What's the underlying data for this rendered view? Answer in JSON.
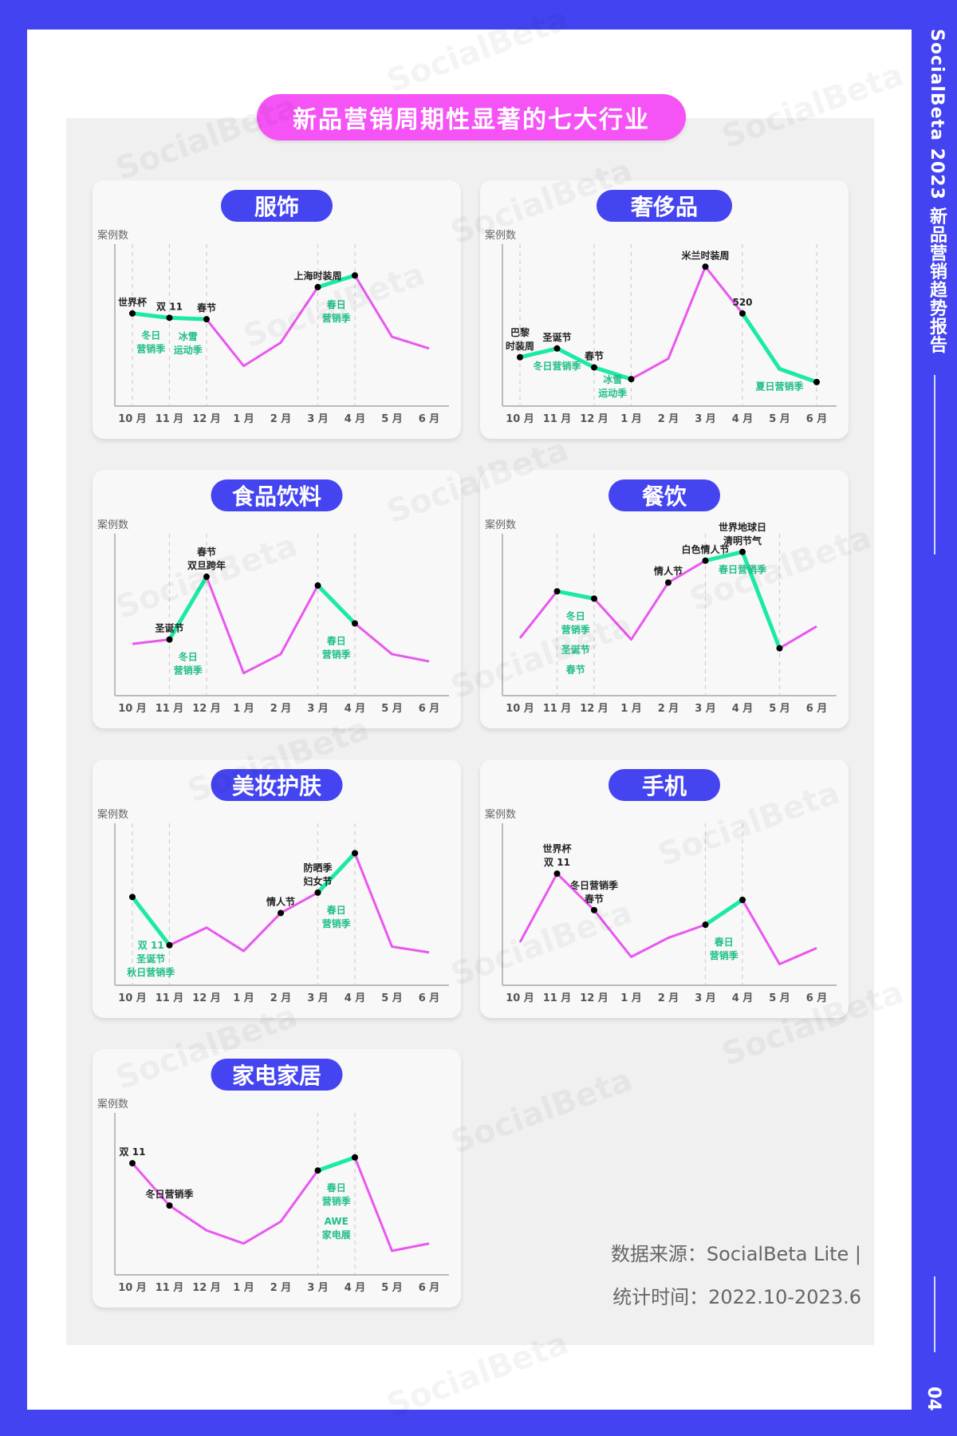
{
  "side": {
    "title": "SocialBeta 2023 新品营销趋势报告",
    "page_number": "04"
  },
  "header": {
    "title": "新品营销周期性显著的七大行业"
  },
  "footer": {
    "source": "数据来源：SocialBeta Lite |",
    "period": "统计时间：2022.10-2023.6"
  },
  "watermark": "SocialBeta",
  "colors": {
    "frame": "#4343f2",
    "title_pill": "#f553f5",
    "card_pill": "#4444f0",
    "line": "#e957f0",
    "highlight": "#1de9a6",
    "annotation_green": "#1fbf85",
    "panel": "#f0f0f0"
  },
  "chart_data": [
    {
      "type": "line",
      "title": "服饰",
      "ylabel": "案例数",
      "xlabel": "",
      "categories": [
        "10 月",
        "11 月",
        "12 月",
        "1 月",
        "2 月",
        "3 月",
        "4 月",
        "5 月",
        "6 月"
      ],
      "values": [
        58,
        55,
        54,
        22,
        38,
        76,
        84,
        42,
        34
      ],
      "highlight_segments": [
        [
          0,
          2
        ],
        [
          5,
          6
        ]
      ],
      "marked_points": [
        0,
        1,
        2,
        5,
        6
      ],
      "dashed_guides": [
        0,
        1,
        2,
        5,
        6
      ],
      "annotations": [
        {
          "text": "世界杯",
          "at": 0,
          "kind": "event"
        },
        {
          "text": "双 11",
          "at": 1,
          "kind": "event"
        },
        {
          "text": "春节",
          "at": 2,
          "kind": "event"
        },
        {
          "text": "上海时装周",
          "at": 5,
          "kind": "event"
        },
        {
          "text": "冬日\n营销季",
          "at": 0.5,
          "kind": "season"
        },
        {
          "text": "冰雪\n运动季",
          "at": 1.5,
          "kind": "season"
        },
        {
          "text": "春日\n营销季",
          "at": 5.5,
          "kind": "season"
        }
      ]
    },
    {
      "type": "line",
      "title": "奢侈品",
      "ylabel": "案例数",
      "xlabel": "",
      "categories": [
        "10 月",
        "11 月",
        "12 月",
        "1 月",
        "2 月",
        "3 月",
        "4 月",
        "5 月",
        "6 月"
      ],
      "values": [
        28,
        34,
        21,
        13,
        27,
        90,
        58,
        20,
        11
      ],
      "highlight_segments": [
        [
          0,
          3
        ],
        [
          6,
          8
        ]
      ],
      "marked_points": [
        0,
        1,
        2,
        3,
        5,
        6,
        8
      ],
      "dashed_guides": [
        0,
        2,
        3,
        6,
        8
      ],
      "annotations": [
        {
          "text": "巴黎\n时装周",
          "at": 0,
          "kind": "event"
        },
        {
          "text": "圣诞节",
          "at": 1,
          "kind": "event"
        },
        {
          "text": "春节",
          "at": 2,
          "kind": "event"
        },
        {
          "text": "米兰时装周",
          "at": 5,
          "kind": "event"
        },
        {
          "text": "520",
          "at": 6,
          "kind": "event"
        },
        {
          "text": "冬日营销季",
          "at": 1,
          "kind": "season"
        },
        {
          "text": "冰雪\n运动季",
          "at": 2.5,
          "kind": "season"
        },
        {
          "text": "夏日营销季",
          "at": 7,
          "kind": "season"
        }
      ]
    },
    {
      "type": "line",
      "title": "食品饮料",
      "ylabel": "案例数",
      "xlabel": "",
      "categories": [
        "10 月",
        "11 月",
        "12 月",
        "1 月",
        "2 月",
        "3 月",
        "4 月",
        "5 月",
        "6 月"
      ],
      "values": [
        30,
        33,
        76,
        10,
        23,
        70,
        44,
        23,
        18
      ],
      "highlight_segments": [
        [
          1,
          2
        ],
        [
          5,
          6
        ]
      ],
      "marked_points": [
        1,
        2,
        5,
        6
      ],
      "dashed_guides": [
        1,
        2,
        5,
        6
      ],
      "annotations": [
        {
          "text": "圣诞节",
          "at": 1,
          "kind": "event"
        },
        {
          "text": "春节\n双旦跨年",
          "at": 2,
          "kind": "event"
        },
        {
          "text": "冬日\n营销季",
          "at": 1.5,
          "kind": "season"
        },
        {
          "text": "春日\n营销季",
          "at": 5.5,
          "kind": "season"
        }
      ]
    },
    {
      "type": "line",
      "title": "餐饮",
      "ylabel": "案例数",
      "xlabel": "",
      "categories": [
        "10 月",
        "11 月",
        "12 月",
        "1 月",
        "2 月",
        "3 月",
        "4 月",
        "5 月",
        "6 月"
      ],
      "values": [
        34,
        66,
        61,
        33,
        72,
        87,
        93,
        27,
        42
      ],
      "highlight_segments": [
        [
          1,
          2
        ],
        [
          5,
          7
        ]
      ],
      "marked_points": [
        1,
        2,
        4,
        5,
        6,
        7
      ],
      "dashed_guides": [
        1,
        2,
        5,
        7
      ],
      "annotations": [
        {
          "text": "情人节",
          "at": 4,
          "kind": "event"
        },
        {
          "text": "白色情人节",
          "at": 5,
          "kind": "event"
        },
        {
          "text": "世界地球日\n清明节气",
          "at": 6,
          "kind": "event"
        },
        {
          "text": "冬日\n营销季",
          "at": 1.5,
          "kind": "season"
        },
        {
          "text": "圣诞节",
          "at": 1.5,
          "kind": "season"
        },
        {
          "text": "春节",
          "at": 1.5,
          "kind": "season"
        },
        {
          "text": "春日营销季",
          "at": 6,
          "kind": "season"
        }
      ]
    },
    {
      "type": "line",
      "title": "美妆护肤",
      "ylabel": "案例数",
      "xlabel": "",
      "categories": [
        "10 月",
        "11 月",
        "12 月",
        "1 月",
        "2 月",
        "3 月",
        "4 月",
        "5 月",
        "6 月"
      ],
      "values": [
        55,
        22,
        34,
        18,
        44,
        58,
        85,
        21,
        17
      ],
      "highlight_segments": [
        [
          0,
          1
        ],
        [
          5,
          6
        ]
      ],
      "marked_points": [
        0,
        1,
        4,
        5,
        6
      ],
      "dashed_guides": [
        0,
        1,
        5,
        6
      ],
      "annotations": [
        {
          "text": "情人节",
          "at": 4,
          "kind": "event"
        },
        {
          "text": "防晒季\n妇女节",
          "at": 5,
          "kind": "event"
        },
        {
          "text": "双 11\n圣诞节\n秋日营销季",
          "at": 0.5,
          "kind": "season"
        },
        {
          "text": "春日\n营销季",
          "at": 5.5,
          "kind": "season"
        }
      ]
    },
    {
      "type": "line",
      "title": "手机",
      "ylabel": "案例数",
      "xlabel": "",
      "categories": [
        "10 月",
        "11 月",
        "12 月",
        "1 月",
        "2 月",
        "3 月",
        "4 月",
        "5 月",
        "6 月"
      ],
      "values": [
        24,
        71,
        46,
        14,
        27,
        36,
        53,
        9,
        20
      ],
      "highlight_segments": [
        [
          5,
          6
        ]
      ],
      "marked_points": [
        1,
        2,
        5,
        6
      ],
      "dashed_guides": [
        5,
        6
      ],
      "annotations": [
        {
          "text": "世界杯\n双 11",
          "at": 1,
          "kind": "event"
        },
        {
          "text": "冬日营销季\n春节",
          "at": 2,
          "kind": "event"
        },
        {
          "text": "春日\n营销季",
          "at": 5.5,
          "kind": "season"
        }
      ]
    },
    {
      "type": "line",
      "title": "家电家居",
      "ylabel": "案例数",
      "xlabel": "",
      "categories": [
        "10 月",
        "11 月",
        "12 月",
        "1 月",
        "2 月",
        "3 月",
        "4 月",
        "5 月",
        "6 月"
      ],
      "values": [
        71,
        42,
        25,
        16,
        31,
        66,
        75,
        11,
        16
      ],
      "highlight_segments": [
        [
          5,
          6
        ]
      ],
      "marked_points": [
        0,
        1,
        5,
        6
      ],
      "dashed_guides": [
        5,
        6
      ],
      "annotations": [
        {
          "text": "双 11",
          "at": 0,
          "kind": "event"
        },
        {
          "text": "冬日营销季",
          "at": 1,
          "kind": "event"
        },
        {
          "text": "春日\n营销季",
          "at": 5.5,
          "kind": "season"
        },
        {
          "text": "AWE\n家电展",
          "at": 5.5,
          "kind": "season"
        }
      ]
    }
  ]
}
